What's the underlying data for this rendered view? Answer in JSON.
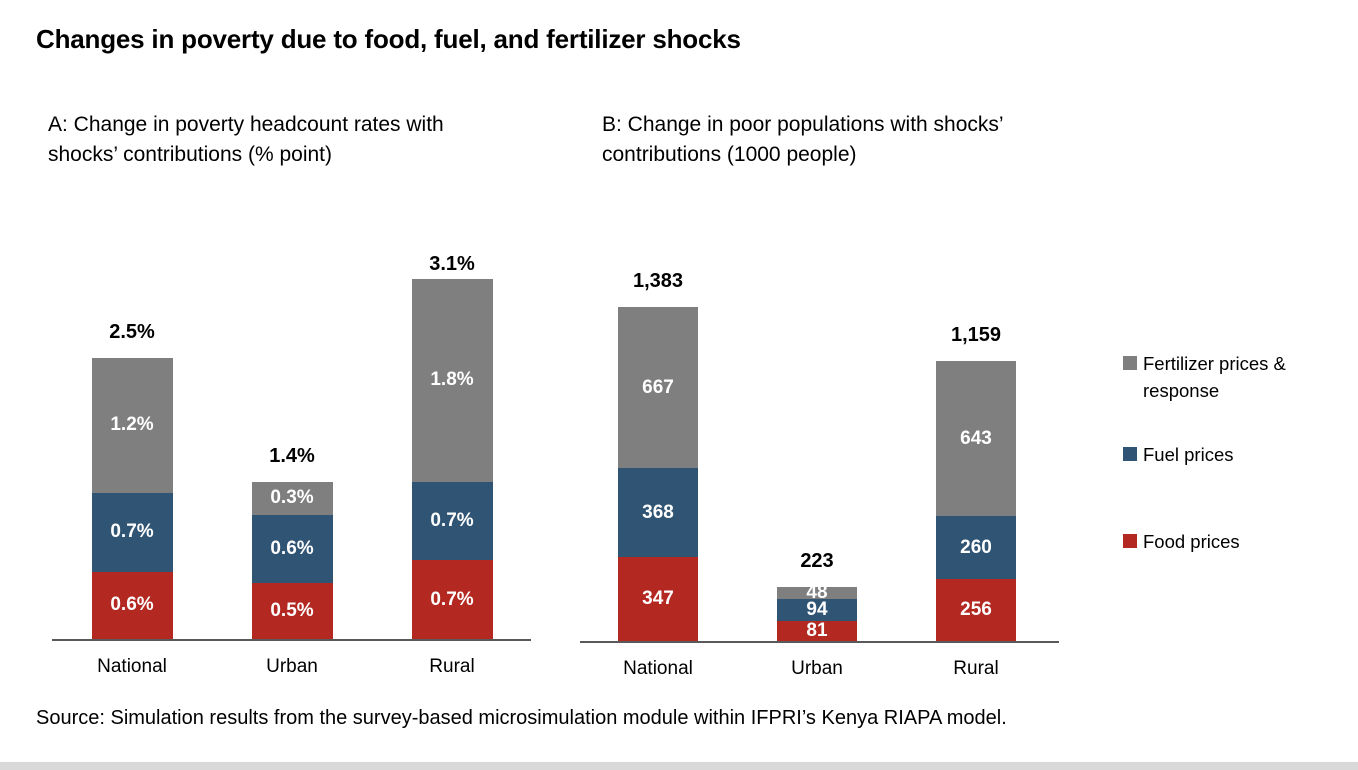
{
  "page": {
    "title": "Changes in poverty due to food, fuel, and fertilizer shocks",
    "source": "Source: Simulation results from the survey-based microsimulation module within IFPRI’s Kenya RIAPA model."
  },
  "colors": {
    "food": "#B32821",
    "fuel": "#2F5474",
    "fertilizer": "#7F7F7F",
    "axis": "#595959"
  },
  "legend": {
    "position": "right",
    "items": [
      {
        "label": "Fertilizer prices & response",
        "color": "#7F7F7F"
      },
      {
        "label": "Fuel prices",
        "color": "#2F5474"
      },
      {
        "label": "Food prices",
        "color": "#B32821"
      }
    ]
  },
  "chart_data": [
    {
      "id": "panelA",
      "type": "bar",
      "stacked": true,
      "grid": false,
      "title": "A: Change in poverty headcount rates with shocks’ contributions (% point)",
      "unit": "% point",
      "categories": [
        "National",
        "Urban",
        "Rural"
      ],
      "series": [
        {
          "name": "Food prices",
          "color": "#B32821",
          "values": [
            0.6,
            0.5,
            0.7
          ],
          "labels": [
            "0.6%",
            "0.5%",
            "0.7%"
          ]
        },
        {
          "name": "Fuel prices",
          "color": "#2F5474",
          "values": [
            0.7,
            0.6,
            0.7
          ],
          "labels": [
            "0.7%",
            "0.6%",
            "0.7%"
          ]
        },
        {
          "name": "Fertilizer prices & response",
          "color": "#7F7F7F",
          "values": [
            1.2,
            0.3,
            1.8
          ],
          "labels": [
            "1.2%",
            "0.3%",
            "1.8%"
          ]
        }
      ],
      "totals": [
        2.5,
        1.4,
        3.1
      ],
      "total_labels": [
        "2.5%",
        "1.4%",
        "3.1%"
      ],
      "ylim": [
        0,
        3.4
      ]
    },
    {
      "id": "panelB",
      "type": "bar",
      "stacked": true,
      "grid": false,
      "title": "B: Change in poor populations with shocks’ contributions (1000 people)",
      "unit": "1000 people",
      "categories": [
        "National",
        "Urban",
        "Rural"
      ],
      "series": [
        {
          "name": "Food prices",
          "color": "#B32821",
          "values": [
            347,
            81,
            256
          ],
          "labels": [
            "347",
            "81",
            "256"
          ]
        },
        {
          "name": "Fuel prices",
          "color": "#2F5474",
          "values": [
            368,
            94,
            260
          ],
          "labels": [
            "368",
            "94",
            "260"
          ]
        },
        {
          "name": "Fertilizer prices & response",
          "color": "#7F7F7F",
          "values": [
            667,
            48,
            643
          ],
          "labels": [
            "667",
            "48",
            "643"
          ]
        }
      ],
      "totals": [
        1383,
        223,
        1159
      ],
      "total_labels": [
        "1,383",
        "223",
        "1,159"
      ],
      "ylim": [
        0,
        1450
      ]
    }
  ]
}
